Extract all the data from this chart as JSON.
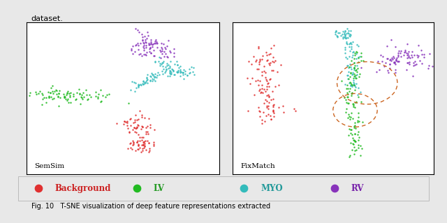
{
  "title_left": "SemSim",
  "title_right": "FixMatch",
  "top_text": "dataset.",
  "bottom_text": "Fig. 10   T-SNE visualization of deep feature representations extracted",
  "legend_labels": [
    "Background",
    "LV",
    "MYO",
    "RV"
  ],
  "legend_colors": [
    "#e03030",
    "#22bb22",
    "#33bbbb",
    "#8833bb"
  ],
  "legend_text_colors": [
    "#cc2020",
    "#229922",
    "#229999",
    "#7722aa"
  ],
  "background_color": "#e8e8e8",
  "panel_bg": "#ffffff",
  "seed": 42,
  "dot_size": 3,
  "ellipse_color": "#cc6622",
  "ellipse_lw": 1.0
}
